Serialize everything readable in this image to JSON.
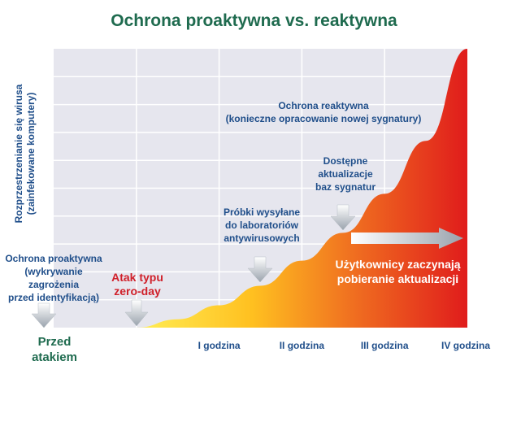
{
  "title": "Ochrona proaktywna vs. reaktywna",
  "y_label": [
    "Rozprzestrzenianie się wirusa",
    "(zainfekowane komputery)"
  ],
  "annotations": {
    "reactive": [
      "Ochrona reaktywna",
      "(konieczne opracowanie nowej sygnatury)"
    ],
    "updates_available": [
      "Dostępne",
      "aktualizacje",
      "baz sygnatur"
    ],
    "samples_sent": [
      "Próbki wysyłane",
      "do laboratoriów",
      "antywirusowych"
    ],
    "proactive": [
      "Ochrona proaktywna",
      "(wykrywanie",
      "zagrożenia",
      "przed identyfikacją)"
    ],
    "zero_day": [
      "Atak typu",
      "zero-day"
    ],
    "users_update": [
      "Użytkownicy zaczynają",
      "pobieranie aktualizacji"
    ]
  },
  "before_attack": [
    "Przed",
    "atakiem"
  ],
  "colors": {
    "title": "#1f6b4f",
    "labels": "#1f4e8a",
    "zero_day": "#d0202a",
    "curve_start": "#ffe040",
    "curve_end": "#e02020",
    "grid_bg": "#e6e6ee"
  },
  "chart_data": {
    "type": "area",
    "title": "Ochrona proaktywna vs. reaktywna",
    "ylabel": "Rozprzestrzenianie się wirusa (zainfekowane komputery)",
    "x": [
      0,
      0.5,
      1,
      1.5,
      2,
      2.5,
      3,
      3.5,
      4
    ],
    "xlim": [
      -1,
      4
    ],
    "ylim": [
      0,
      1
    ],
    "tick_labels": [
      "I godzina",
      "II godzina",
      "III godzina",
      "IV godzina"
    ],
    "tick_positions": [
      1,
      2,
      3,
      4
    ],
    "series": [
      {
        "values": [
          0,
          0.03,
          0.08,
          0.15,
          0.24,
          0.34,
          0.48,
          0.67,
          1.0
        ]
      }
    ],
    "grid": true
  }
}
